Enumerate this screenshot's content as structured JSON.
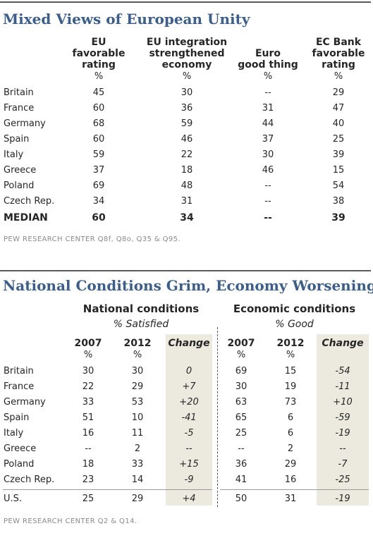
{
  "table1": {
    "title": "Mixed Views of European Unity",
    "columns": [
      {
        "header": "EU favorable rating",
        "lines": [
          "EU",
          "favorable",
          "rating"
        ],
        "unit": "%"
      },
      {
        "header": "EU integration strengthened economy",
        "lines": [
          "EU integration",
          "strengthened",
          "economy"
        ],
        "unit": "%"
      },
      {
        "header": "Euro good thing",
        "lines": [
          "Euro",
          "good thing"
        ],
        "unit": "%"
      },
      {
        "header": "EC Bank favorable rating",
        "lines": [
          "EC Bank",
          "favorable",
          "rating"
        ],
        "unit": "%"
      }
    ],
    "rows": [
      {
        "country": "Britain",
        "values": [
          "45",
          "30",
          "--",
          "29"
        ]
      },
      {
        "country": "France",
        "values": [
          "60",
          "36",
          "31",
          "47"
        ]
      },
      {
        "country": "Germany",
        "values": [
          "68",
          "59",
          "44",
          "40"
        ]
      },
      {
        "country": "Spain",
        "values": [
          "60",
          "46",
          "37",
          "25"
        ]
      },
      {
        "country": "Italy",
        "values": [
          "59",
          "22",
          "30",
          "39"
        ]
      },
      {
        "country": "Greece",
        "values": [
          "37",
          "18",
          "46",
          "15"
        ]
      },
      {
        "country": "Poland",
        "values": [
          "69",
          "48",
          "--",
          "54"
        ]
      },
      {
        "country": "Czech Rep.",
        "values": [
          "34",
          "31",
          "--",
          "38"
        ]
      }
    ],
    "median": {
      "country": "MEDIAN",
      "values": [
        "60",
        "34",
        "--",
        "39"
      ]
    },
    "source": "PEW RESEARCH CENTER Q8f, Q8o, Q35 & Q95."
  },
  "table2": {
    "title": "National Conditions Grim, Economy Worsening",
    "groups": [
      {
        "header": "National conditions",
        "sub": "% Satisfied"
      },
      {
        "header": "Economic conditions",
        "sub": "% Good"
      }
    ],
    "col_labels": [
      "2007",
      "2012",
      "Change",
      "2007",
      "2012",
      "Change"
    ],
    "col_units": [
      "%",
      "%",
      "",
      "%",
      "%",
      ""
    ],
    "rows": [
      {
        "country": "Britain",
        "values": [
          "30",
          "30",
          "0",
          "69",
          "15",
          "-54"
        ]
      },
      {
        "country": "France",
        "values": [
          "22",
          "29",
          "+7",
          "30",
          "19",
          "-11"
        ]
      },
      {
        "country": "Germany",
        "values": [
          "33",
          "53",
          "+20",
          "63",
          "73",
          "+10"
        ]
      },
      {
        "country": "Spain",
        "values": [
          "51",
          "10",
          "-41",
          "65",
          "6",
          "-59"
        ]
      },
      {
        "country": "Italy",
        "values": [
          "16",
          "11",
          "-5",
          "25",
          "6",
          "-19"
        ]
      },
      {
        "country": "Greece",
        "values": [
          "--",
          "2",
          "--",
          "--",
          "2",
          "--"
        ]
      },
      {
        "country": "Poland",
        "values": [
          "18",
          "33",
          "+15",
          "36",
          "29",
          "-7"
        ]
      },
      {
        "country": "Czech Rep.",
        "values": [
          "23",
          "14",
          "-9",
          "41",
          "16",
          "-25"
        ]
      }
    ],
    "us_row": {
      "country": "U.S.",
      "values": [
        "25",
        "29",
        "+4",
        "50",
        "31",
        "-19"
      ]
    },
    "source": "PEW RESEARCH CENTER Q2 & Q14."
  },
  "colors": {
    "title": "#3b5e8c",
    "change_shade": "#ece9df",
    "rule": "#5a5a5a"
  }
}
